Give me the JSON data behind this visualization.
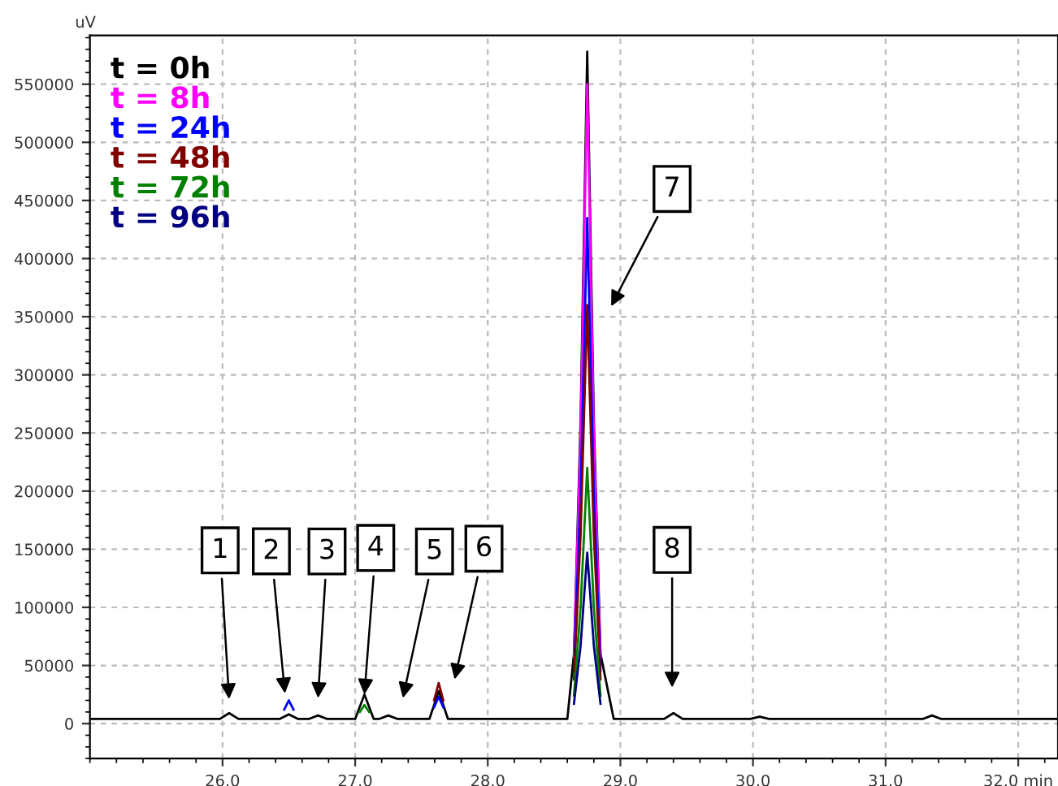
{
  "chart_data": {
    "type": "line",
    "ylabel": "uV",
    "series": [
      {
        "name": "t = 0h",
        "color": "#000000",
        "x": [
          25.0,
          25.98,
          26.05,
          26.12,
          26.43,
          26.5,
          26.57,
          26.65,
          26.72,
          26.79,
          27.0,
          27.07,
          27.14,
          27.18,
          27.25,
          27.32,
          27.56,
          27.63,
          27.7,
          28.6,
          28.65,
          28.7,
          28.75,
          28.8,
          28.85,
          28.95,
          29.33,
          29.4,
          29.47,
          29.98,
          30.05,
          30.12,
          31.28,
          31.35,
          31.42,
          32.3
        ],
        "values": [
          4000,
          4000,
          9000,
          4000,
          4000,
          8000,
          4000,
          4000,
          7000,
          4000,
          4000,
          25000,
          4000,
          4000,
          7000,
          4000,
          4000,
          28000,
          4000,
          4000,
          60000,
          260000,
          578000,
          260000,
          60000,
          4000,
          4000,
          9000,
          4000,
          4000,
          6000,
          4000,
          4000,
          7000,
          4000,
          4000
        ]
      },
      {
        "name": "t = 8h",
        "color": "#ff00ff",
        "x": [
          28.65,
          28.7,
          28.75,
          28.8,
          28.85
        ],
        "values": [
          57000,
          248000,
          550000,
          248000,
          57000
        ]
      },
      {
        "name": "t = 24h",
        "color": "#0000ff",
        "x": [
          26.465,
          26.5,
          26.535,
          27.0,
          27.595,
          27.63,
          27.665,
          28.2,
          28.65,
          28.7,
          28.75,
          28.8,
          28.85
        ],
        "values": [
          12000,
          20000,
          12000,
          null,
          14000,
          23000,
          14000,
          null,
          45000,
          196000,
          435000,
          196000,
          45000
        ]
      },
      {
        "name": "t = 48h",
        "color": "#800000",
        "x": [
          27.595,
          27.63,
          27.665,
          28.2,
          28.65,
          28.7,
          28.75,
          28.8,
          28.85
        ],
        "values": [
          20000,
          35000,
          20000,
          null,
          38000,
          162000,
          360000,
          162000,
          38000
        ]
      },
      {
        "name": "t = 72h",
        "color": "#008000",
        "x": [
          27.035,
          27.07,
          27.105,
          28.2,
          28.65,
          28.7,
          28.75,
          28.8,
          28.85
        ],
        "values": [
          10000,
          16000,
          10000,
          null,
          24000,
          100000,
          220000,
          100000,
          24000
        ]
      },
      {
        "name": "t = 96h",
        "color": "#000080",
        "x": [
          28.65,
          28.7,
          28.75,
          28.8,
          28.85
        ],
        "values": [
          17000,
          67000,
          147000,
          67000,
          17000
        ]
      }
    ],
    "xlim": [
      25.0,
      32.3
    ],
    "xticks": [
      {
        "value": 26.0,
        "label": "26.0"
      },
      {
        "value": 27.0,
        "label": "27.0"
      },
      {
        "value": 28.0,
        "label": "28.0"
      },
      {
        "value": 29.0,
        "label": "29.0"
      },
      {
        "value": 30.0,
        "label": "30.0"
      },
      {
        "value": 31.0,
        "label": "31.0"
      },
      {
        "value": 32.0,
        "label": "32.0 min"
      }
    ],
    "ylim": [
      -30000,
      592000
    ],
    "yticks": [
      0,
      50000,
      100000,
      150000,
      200000,
      250000,
      300000,
      350000,
      400000,
      450000,
      500000,
      550000
    ],
    "grid": true,
    "legend": "top left",
    "line_style": "solid",
    "marker": "none",
    "annotations": [
      "1",
      "2",
      "3",
      {
        "text": "4",
        "x": 27.07,
        "y": 25000
      },
      "5",
      "6",
      "7",
      "8"
    ]
  }
}
